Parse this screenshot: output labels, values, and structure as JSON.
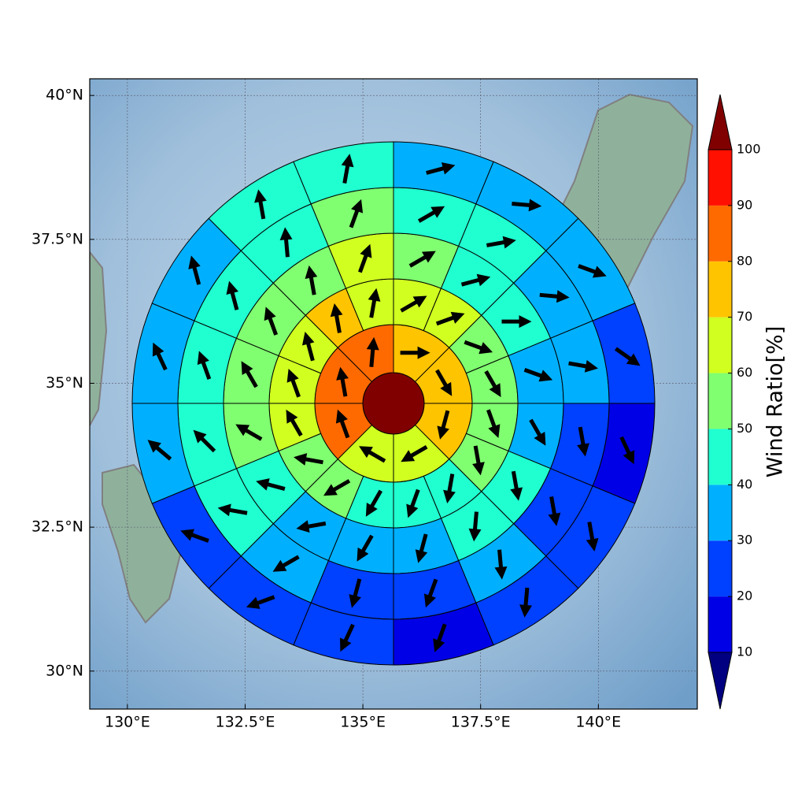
{
  "chart_data": {
    "type": "polar-grid-map",
    "xlim": [
      129.2,
      142.1
    ],
    "ylim": [
      29.34,
      40.29
    ],
    "xticks": [
      {
        "value": 130,
        "label": "130°E"
      },
      {
        "value": 132.5,
        "label": "132.5°E"
      },
      {
        "value": 135,
        "label": "135°E"
      },
      {
        "value": 137.5,
        "label": "137.5°E"
      },
      {
        "value": 140,
        "label": "140°E"
      }
    ],
    "yticks": [
      {
        "value": 30,
        "label": "30°N"
      },
      {
        "value": 32.5,
        "label": "32.5°N"
      },
      {
        "value": 35,
        "label": "35°N"
      },
      {
        "value": 37.5,
        "label": "37.5°N"
      },
      {
        "value": 40,
        "label": "40°N"
      }
    ],
    "grid": true,
    "center_value": 100,
    "rings": [
      {
        "values": [
          75,
          75,
          75,
          65,
          65,
          85,
          85,
          85
        ],
        "directions": [
          90,
          150,
          195,
          240,
          300,
          340,
          350,
          5
        ]
      },
      {
        "values": [
          65,
          65,
          55,
          55,
          55,
          55,
          45,
          45,
          45,
          55,
          55,
          65,
          65,
          65,
          75,
          65
        ],
        "directions": [
          60,
          70,
          110,
          150,
          160,
          170,
          190,
          200,
          210,
          240,
          280,
          330,
          340,
          345,
          350,
          10
        ]
      },
      {
        "values": [
          55,
          45,
          45,
          35,
          35,
          45,
          45,
          35,
          35,
          35,
          45,
          55,
          55,
          55,
          55,
          65
        ],
        "directions": [
          60,
          75,
          90,
          110,
          150,
          170,
          185,
          195,
          210,
          260,
          285,
          300,
          330,
          340,
          350,
          20
        ]
      },
      {
        "values": [
          45,
          45,
          35,
          35,
          25,
          25,
          35,
          25,
          25,
          35,
          45,
          45,
          45,
          45,
          45,
          55
        ],
        "directions": [
          60,
          80,
          95,
          100,
          170,
          170,
          175,
          200,
          195,
          240,
          280,
          315,
          340,
          345,
          355,
          20
        ]
      },
      {
        "values": [
          35,
          35,
          35,
          25,
          15,
          25,
          25,
          15,
          25,
          25,
          25,
          35,
          35,
          35,
          45,
          45
        ],
        "directions": [
          75,
          95,
          110,
          125,
          155,
          170,
          185,
          200,
          205,
          250,
          290,
          310,
          335,
          345,
          350,
          10
        ]
      }
    ],
    "colorbar": {
      "label": "Wind Ratio[%]",
      "levels": [
        10,
        20,
        30,
        40,
        50,
        60,
        70,
        80,
        90,
        100
      ],
      "colors": [
        "#0000e6",
        "#0040ff",
        "#00b0ff",
        "#20ffd0",
        "#80ff70",
        "#d0ff20",
        "#ffc400",
        "#ff6a00",
        "#ff1000"
      ],
      "under_color": "#000080",
      "over_color": "#800000"
    }
  }
}
